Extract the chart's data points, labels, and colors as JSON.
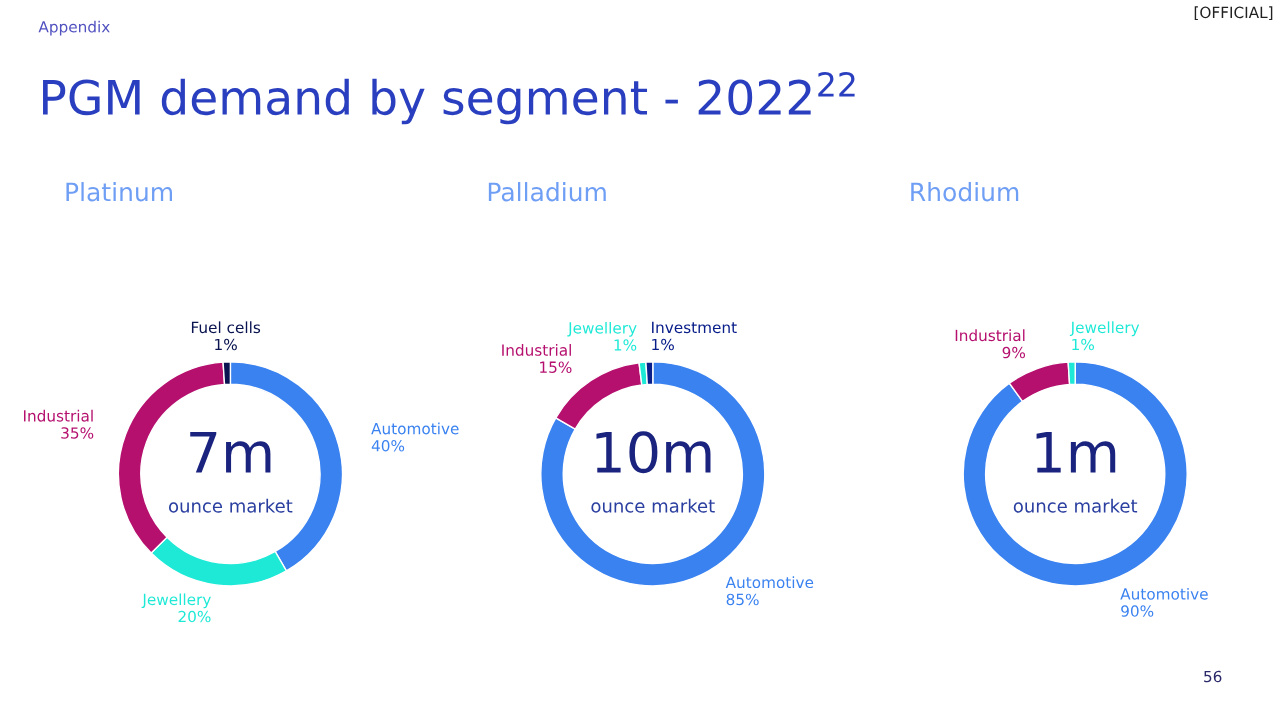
{
  "chart_data": [
    {
      "type": "donut",
      "title": "Platinum",
      "categories": [
        "Automotive",
        "Jewellery",
        "Industrial",
        "Fuel cells"
      ],
      "values": [
        40,
        20,
        35,
        1
      ],
      "value_labels": [
        "40%",
        "20%",
        "35%",
        "1%"
      ],
      "colors": [
        "#3a82f0",
        "#1de9d6",
        "#b5106e",
        "#0a1450"
      ],
      "annotations": [
        "Appendix",
        "PGM demand by segment - 2022$^{22}$",
        "[OFFICIAL]",
        "7m",
        "ounce market"
      ]
    },
    {
      "type": "donut",
      "title": "Palladium",
      "categories": [
        "Automotive",
        "Industrial",
        "Jewellery",
        "Investment"
      ],
      "values": [
        85,
        15,
        1,
        1
      ],
      "value_labels": [
        "85%",
        "15%",
        "1%",
        "1%"
      ],
      "colors": [
        "#3a82f0",
        "#b5106e",
        "#1de9d6",
        "#0a1f8a"
      ],
      "annotations": [
        "10m",
        "ounce market"
      ]
    },
    {
      "type": "donut",
      "title": "Rhodium",
      "categories": [
        "Automotive",
        "Industrial",
        "Jewellery"
      ],
      "values": [
        90,
        9,
        1
      ],
      "value_labels": [
        "90%",
        "9%",
        "1%"
      ],
      "colors": [
        "#3a82f0",
        "#b5106e",
        "#1de9d6"
      ],
      "annotations": [
        "1m",
        "ounce market",
        "56"
      ]
    }
  ]
}
